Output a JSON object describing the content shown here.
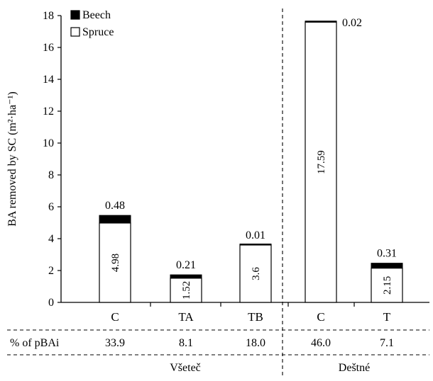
{
  "chart_data": {
    "type": "bar",
    "stacked": true,
    "ylabel": "BA removed by SC (m²·ha⁻¹)",
    "ylim": [
      0,
      18
    ],
    "yticks": [
      0,
      2,
      4,
      6,
      8,
      10,
      12,
      14,
      16,
      18
    ],
    "categories": [
      "C",
      "TA",
      "TB",
      "C",
      "T"
    ],
    "series": [
      {
        "name": "Spruce",
        "color": "#ffffff",
        "values": [
          4.98,
          1.52,
          3.6,
          17.59,
          2.15
        ]
      },
      {
        "name": "Beech",
        "color": "#000000",
        "values": [
          0.48,
          0.21,
          0.01,
          0.02,
          0.31
        ]
      }
    ],
    "spruce_labels": [
      "4.98",
      "1.52",
      "3.6",
      "17.59",
      "2.15"
    ],
    "beech_labels": [
      "0.48",
      "0.21",
      "0.01",
      "0.02",
      "0.31"
    ],
    "legend": {
      "position": "top-left",
      "entries": [
        "Beech",
        "Spruce"
      ]
    },
    "pct_label": "% of pBAi",
    "pct_values": [
      "33.9",
      "8.1",
      "18.0",
      "46.0",
      "7.1"
    ],
    "groups": [
      "Všeteč",
      "Deštné"
    ],
    "grid": false
  }
}
